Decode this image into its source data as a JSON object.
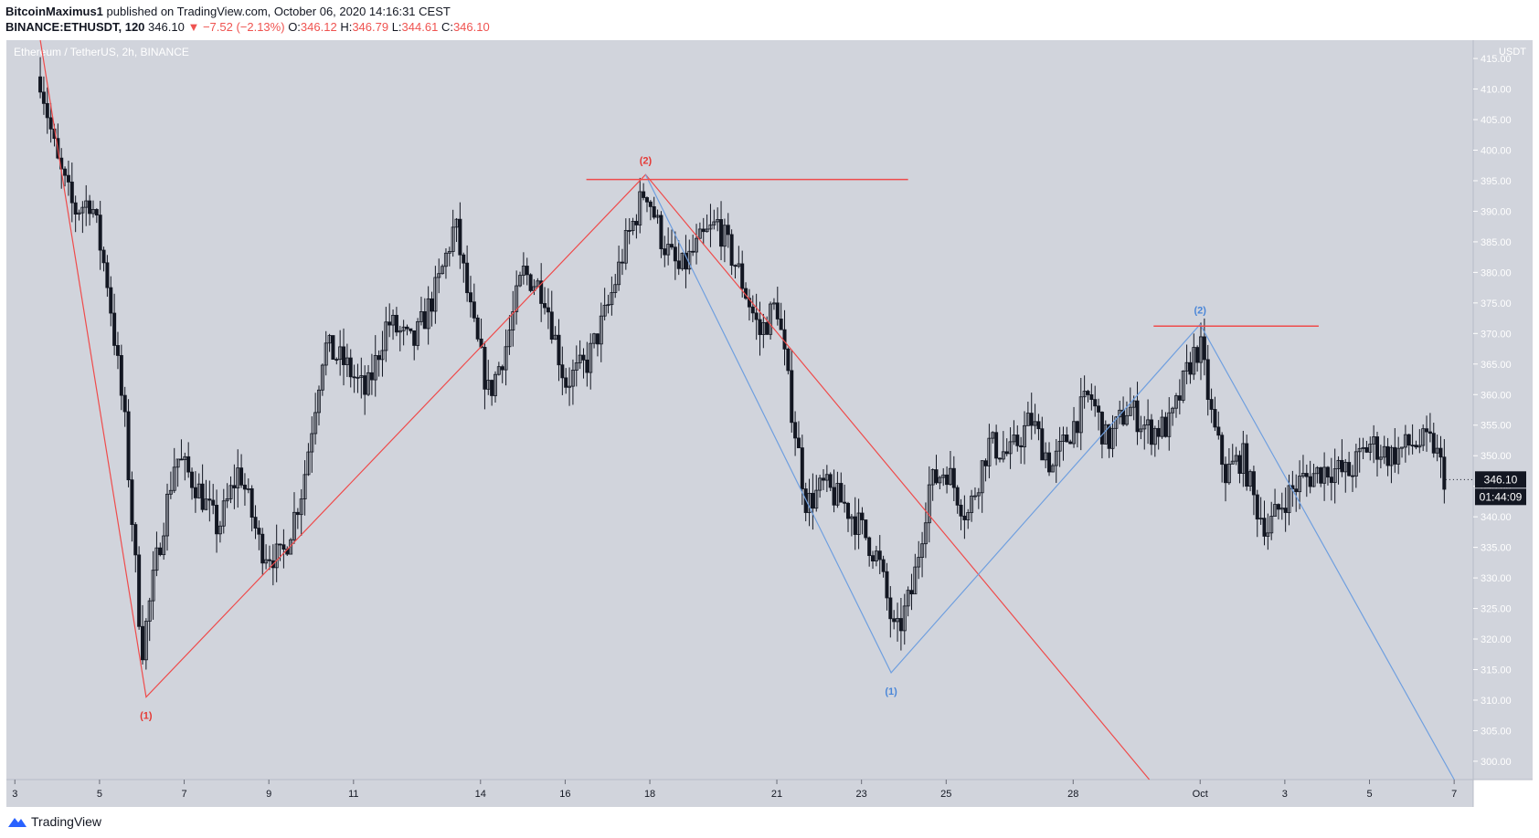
{
  "header": {
    "author": "BitcoinMaximus1",
    "published": "published on TradingView.com, October 06, 2020 14:16:31 CEST",
    "symbol": "BINANCE:ETHUSDT, 120",
    "last": "346.10",
    "change": "−7.52 (−2.13%)",
    "open_label": "O:",
    "open": "346.12",
    "high_label": "H:",
    "high": "346.79",
    "low_label": "L:",
    "low": "344.61",
    "close_label": "C:",
    "close": "346.10"
  },
  "chart_title": "Ethereum / TetherUS, 2h, BINANCE",
  "currency": "USDT",
  "price_tag": "346.10",
  "countdown": "01:44:09",
  "footer": {
    "brand": "TradingView"
  },
  "colors": {
    "plot_bg": "#d1d4dc",
    "candle": "#131722",
    "red_wave": "#ef4b4b",
    "blue_wave": "#6f9fdf"
  },
  "chart_data": {
    "type": "candlestick",
    "ylim": [
      297,
      418
    ],
    "y_ticks": [
      415,
      410,
      405,
      400,
      395,
      390,
      385,
      380,
      375,
      370,
      365,
      360,
      355,
      350,
      345,
      340,
      335,
      330,
      325,
      320,
      315,
      310,
      305,
      300
    ],
    "y_tick_labels": [
      "415.00",
      "410.00",
      "405.00",
      "400.00",
      "395.00",
      "390.00",
      "385.00",
      "380.00",
      "375.00",
      "370.00",
      "365.00",
      "360.00",
      "355.00",
      "350.00",
      "345.00",
      "340.00",
      "335.00",
      "330.00",
      "325.00",
      "320.00",
      "315.00",
      "310.00",
      "305.00",
      "300.00"
    ],
    "x_start": "Sep 3 00:00 UTC",
    "x_ticks": [
      {
        "day": 3,
        "label": "3"
      },
      {
        "day": 5,
        "label": "5"
      },
      {
        "day": 7,
        "label": "7"
      },
      {
        "day": 9,
        "label": "9"
      },
      {
        "day": 11,
        "label": "11"
      },
      {
        "day": 14,
        "label": "14"
      },
      {
        "day": 16,
        "label": "16"
      },
      {
        "day": 18,
        "label": "18"
      },
      {
        "day": 21,
        "label": "21"
      },
      {
        "day": 23,
        "label": "23"
      },
      {
        "day": 25,
        "label": "25"
      },
      {
        "day": 28,
        "label": "28"
      },
      {
        "day": 31,
        "label": "Oct"
      },
      {
        "day": 33,
        "label": "3"
      },
      {
        "day": 35,
        "label": "5"
      },
      {
        "day": 37,
        "label": "7"
      }
    ],
    "price_path": [
      [
        3.6,
        412
      ],
      [
        4.0,
        398
      ],
      [
        4.4,
        390
      ],
      [
        4.8,
        392
      ],
      [
        5.2,
        378
      ],
      [
        5.6,
        355
      ],
      [
        6.0,
        318
      ],
      [
        6.4,
        335
      ],
      [
        6.8,
        350
      ],
      [
        7.3,
        345
      ],
      [
        7.8,
        338
      ],
      [
        8.3,
        348
      ],
      [
        8.8,
        335
      ],
      [
        9.3,
        333
      ],
      [
        9.8,
        345
      ],
      [
        10.3,
        368
      ],
      [
        10.8,
        365
      ],
      [
        11.3,
        360
      ],
      [
        11.8,
        372
      ],
      [
        12.4,
        368
      ],
      [
        13.0,
        378
      ],
      [
        13.4,
        388
      ],
      [
        13.8,
        372
      ],
      [
        14.2,
        360
      ],
      [
        14.6,
        368
      ],
      [
        15.0,
        380
      ],
      [
        15.5,
        377
      ],
      [
        16.0,
        362
      ],
      [
        16.5,
        365
      ],
      [
        17.0,
        374
      ],
      [
        17.4,
        384
      ],
      [
        17.9,
        394
      ],
      [
        18.3,
        385
      ],
      [
        18.7,
        380
      ],
      [
        19.2,
        385
      ],
      [
        19.6,
        388
      ],
      [
        20.1,
        380
      ],
      [
        20.6,
        370
      ],
      [
        21.0,
        375
      ],
      [
        21.3,
        360
      ],
      [
        21.7,
        342
      ],
      [
        22.1,
        345
      ],
      [
        22.6,
        342
      ],
      [
        23.0,
        338
      ],
      [
        23.4,
        333
      ],
      [
        23.8,
        320
      ],
      [
        24.2,
        328
      ],
      [
        24.6,
        345
      ],
      [
        25.0,
        348
      ],
      [
        25.5,
        340
      ],
      [
        26.0,
        352
      ],
      [
        26.5,
        350
      ],
      [
        27.0,
        356
      ],
      [
        27.5,
        348
      ],
      [
        28.0,
        355
      ],
      [
        28.4,
        360
      ],
      [
        28.8,
        352
      ],
      [
        29.3,
        358
      ],
      [
        29.8,
        354
      ],
      [
        30.3,
        355
      ],
      [
        30.8,
        366
      ],
      [
        31.0,
        368
      ],
      [
        31.3,
        355
      ],
      [
        31.6,
        347
      ],
      [
        32.0,
        350
      ],
      [
        32.3,
        342
      ],
      [
        32.6,
        338
      ],
      [
        33.0,
        343
      ],
      [
        33.4,
        346
      ],
      [
        34.0,
        348
      ],
      [
        34.5,
        347
      ],
      [
        35.0,
        352
      ],
      [
        35.5,
        350
      ],
      [
        36.0,
        352
      ],
      [
        36.5,
        352
      ],
      [
        36.8,
        346
      ]
    ],
    "wave_counts": [
      {
        "label": "(1)",
        "color": "red",
        "x": 6.1,
        "y": 310.5,
        "pos": "below"
      },
      {
        "label": "(2)",
        "color": "red",
        "x": 17.9,
        "y": 396,
        "pos": "above"
      },
      {
        "label": "(1)",
        "color": "blue",
        "x": 23.7,
        "y": 314.5,
        "pos": "below"
      },
      {
        "label": "(2)",
        "color": "blue",
        "x": 31.0,
        "y": 371.5,
        "pos": "above"
      }
    ],
    "red_wave": [
      [
        3.6,
        418
      ],
      [
        6.1,
        310.5
      ],
      [
        17.9,
        396
      ],
      [
        29.8,
        297
      ]
    ],
    "blue_wave": [
      [
        17.9,
        396
      ],
      [
        23.7,
        314.5
      ],
      [
        31.0,
        371.5
      ],
      [
        37.0,
        297
      ]
    ],
    "resistance_lines": [
      {
        "color": "red",
        "x1": 16.5,
        "x2": 24.1,
        "y": 395.2
      },
      {
        "color": "red",
        "x1": 29.9,
        "x2": 33.8,
        "y": 371.2
      }
    ]
  }
}
